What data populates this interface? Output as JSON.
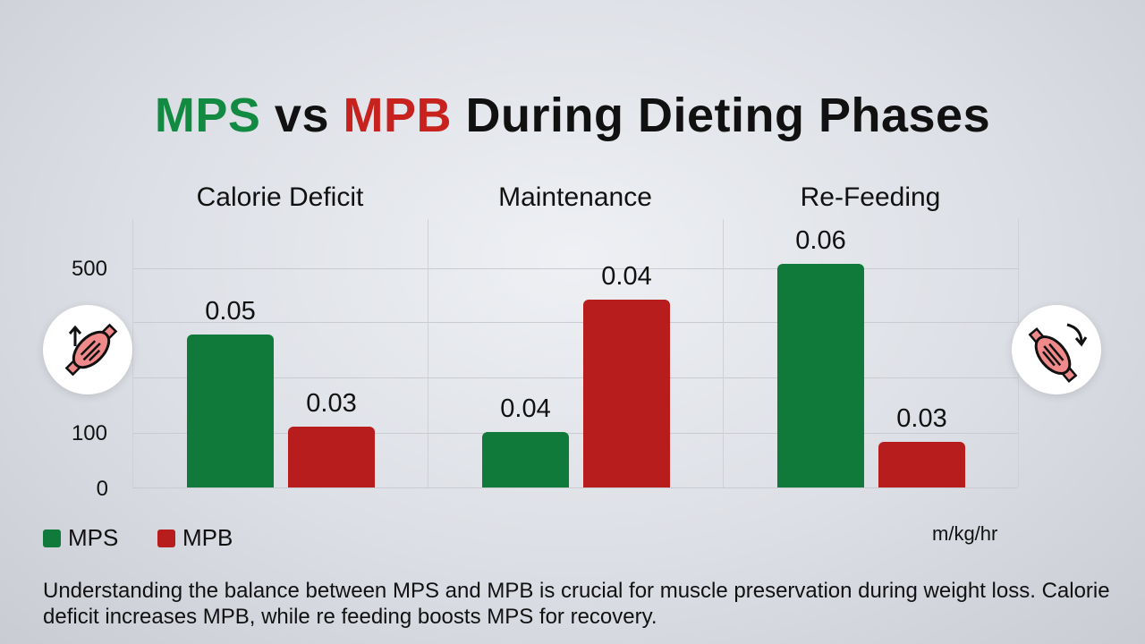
{
  "title": {
    "part1": "MPS",
    "part2": " vs ",
    "part3": "MPB",
    "part4": " During Dieting Phases"
  },
  "colors": {
    "mps": "#0f7a3a",
    "mpb": "#b81d1d",
    "title_green": "#138a42",
    "title_red": "#c8221f"
  },
  "icons": {
    "left": "muscle-arrow-up-icon",
    "right": "muscle-arrow-down-icon"
  },
  "chart_data": {
    "type": "bar",
    "categories": [
      "Calorie Deficit",
      "Maintenance",
      "Re-Feeding"
    ],
    "y_ticks": [
      "500",
      "100",
      "0"
    ],
    "ylim": [
      0,
      500
    ],
    "unit_label": "m/kg/hr",
    "grid": true,
    "legend_position": "bottom-left",
    "series": [
      {
        "name": "MPS",
        "values": [
          349,
          127,
          510
        ],
        "data_labels": [
          "0.05",
          "0.04",
          "0.06"
        ]
      },
      {
        "name": "MPB",
        "values": [
          139,
          429,
          104
        ],
        "data_labels": [
          "0.03",
          "0.04",
          "0.03"
        ]
      }
    ]
  },
  "legend": [
    {
      "label": "MPS"
    },
    {
      "label": "MPB"
    }
  ],
  "footer": "Understanding the balance between MPS and MPB is crucial for muscle preservation during weight loss. Calorie deficit increases MPB, while re feeding boosts MPS for recovery."
}
